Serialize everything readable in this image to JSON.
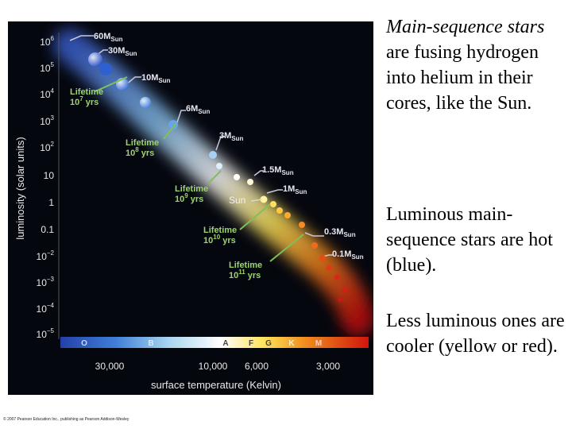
{
  "diagram": {
    "y_axis_label": "luminosity (solar units)",
    "x_axis_label": "surface temperature (Kelvin)",
    "y_ticks": [
      {
        "base": "10",
        "exp": "6"
      },
      {
        "base": "10",
        "exp": "5"
      },
      {
        "base": "10",
        "exp": "4"
      },
      {
        "base": "10",
        "exp": "3"
      },
      {
        "base": "10",
        "exp": "2"
      },
      {
        "base": "10",
        "exp": ""
      },
      {
        "base": "1",
        "exp": ""
      },
      {
        "base": "0.1",
        "exp": ""
      },
      {
        "base": "10",
        "exp": "−2"
      },
      {
        "base": "10",
        "exp": "−3"
      },
      {
        "base": "10",
        "exp": "−4"
      },
      {
        "base": "10",
        "exp": "−5"
      }
    ],
    "x_ticks": [
      "30,000",
      "10,000",
      "6,000",
      "3,000"
    ],
    "spectral_classes": [
      "O",
      "B",
      "A",
      "F",
      "G",
      "K",
      "M"
    ],
    "mass_labels": [
      {
        "num": "60",
        "text": "60M",
        "sub": "Sun"
      },
      {
        "num": "30",
        "text": "30M",
        "sub": "Sun"
      },
      {
        "num": "10",
        "text": "10M",
        "sub": "Sun"
      },
      {
        "num": "6",
        "text": "6M",
        "sub": "Sun"
      },
      {
        "num": "3",
        "text": "3M",
        "sub": "Sun"
      },
      {
        "num": "1.5",
        "text": "1.5M",
        "sub": "Sun"
      },
      {
        "num": "1",
        "text": "1M",
        "sub": "Sun"
      },
      {
        "num": "0.3",
        "text": "0.3M",
        "sub": "Sun"
      },
      {
        "num": "0.1",
        "text": "0.1M",
        "sub": "Sun"
      }
    ],
    "lifetime_labels": [
      {
        "line1": "Lifetime",
        "base": "10",
        "exp": "7",
        "unit": "yrs"
      },
      {
        "line1": "Lifetime",
        "base": "10",
        "exp": "8",
        "unit": "yrs"
      },
      {
        "line1": "Lifetime",
        "base": "10",
        "exp": "9",
        "unit": "yrs"
      },
      {
        "line1": "Lifetime",
        "base": "10",
        "exp": "10",
        "unit": "yrs"
      },
      {
        "line1": "Lifetime",
        "base": "10",
        "exp": "11",
        "unit": "yrs"
      }
    ],
    "sun_label": "Sun",
    "colors": {
      "background": "#05070f",
      "hot_star": "#3a7fe0",
      "sun_star": "#fff3a0",
      "cool_star": "#e0281c",
      "lifetime_text": "#9cd56b"
    }
  },
  "side_text": {
    "p1_italic": "Main-sequence stars",
    "p1_rest": " are fusing hydrogen into helium in their cores, like the Sun.",
    "p2": "Luminous main-sequence stars are hot (blue).",
    "p3": "Less luminous ones are cooler (yellow or red)."
  },
  "copyright": "© 2007 Pearson Education Inc., publishing as Pearson Addison-Wesley"
}
